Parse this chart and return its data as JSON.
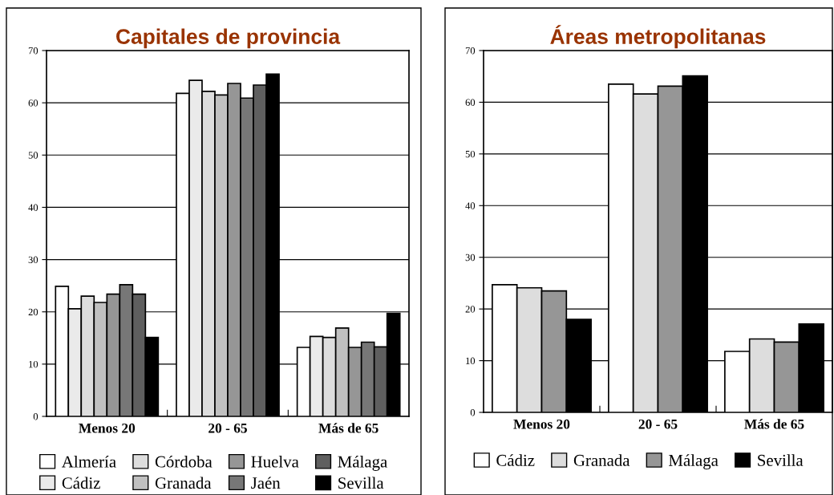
{
  "chart_data": [
    {
      "type": "bar",
      "title": "Capitales de provincia",
      "categories": [
        "Menos 20",
        "20 - 65",
        "Más de 65"
      ],
      "ylim": [
        0,
        70
      ],
      "yticks": [
        0,
        10,
        20,
        30,
        40,
        50,
        60,
        70
      ],
      "grid": "y",
      "legend": "bottom",
      "series": [
        {
          "name": "Almería",
          "color": "#ffffff",
          "values": [
            24.9,
            61.8,
            13.2
          ]
        },
        {
          "name": "Cádiz",
          "color": "#eaeaea",
          "values": [
            20.6,
            64.3,
            15.3
          ]
        },
        {
          "name": "Córdoba",
          "color": "#dddddd",
          "values": [
            23.0,
            62.2,
            15.1
          ]
        },
        {
          "name": "Granada",
          "color": "#c0c0c0",
          "values": [
            21.8,
            61.5,
            16.9
          ]
        },
        {
          "name": "Huelva",
          "color": "#969696",
          "values": [
            23.4,
            63.7,
            13.2
          ]
        },
        {
          "name": "Jaén",
          "color": "#777777",
          "values": [
            25.2,
            60.9,
            14.2
          ]
        },
        {
          "name": "Málaga",
          "color": "#5f5f5f",
          "values": [
            23.4,
            63.4,
            13.3
          ]
        },
        {
          "name": "Sevilla",
          "color": "#000000",
          "values": [
            15.1,
            65.5,
            19.7
          ]
        }
      ]
    },
    {
      "type": "bar",
      "title": "Áreas metropolitanas",
      "categories": [
        "Menos 20",
        "20 - 65",
        "Más de 65"
      ],
      "ylim": [
        0,
        70
      ],
      "yticks": [
        0,
        10,
        20,
        30,
        40,
        50,
        60,
        70
      ],
      "grid": "y",
      "legend": "bottom",
      "series": [
        {
          "name": "Cádiz",
          "color": "#ffffff",
          "values": [
            24.7,
            63.5,
            11.8
          ]
        },
        {
          "name": "Granada",
          "color": "#dddddd",
          "values": [
            24.1,
            61.6,
            14.2
          ]
        },
        {
          "name": "Málaga",
          "color": "#969696",
          "values": [
            23.5,
            63.1,
            13.6
          ]
        },
        {
          "name": "Sevilla",
          "color": "#000000",
          "values": [
            18.0,
            65.1,
            17.1
          ]
        }
      ]
    }
  ]
}
